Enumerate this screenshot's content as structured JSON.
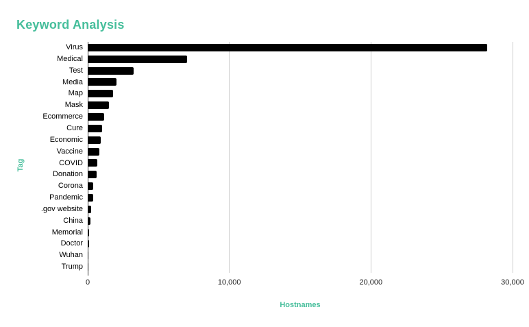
{
  "page": {
    "background": "#ffffff"
  },
  "chart_data": {
    "type": "bar",
    "orientation": "horizontal",
    "title": "Keyword Analysis",
    "xlabel": "Hostnames",
    "ylabel": "Tag",
    "categories": [
      "Virus",
      "Medical",
      "Test",
      "Media",
      "Map",
      "Mask",
      "Ecommerce",
      "Cure",
      "Economic",
      "Vaccine",
      "COVID",
      "Donation",
      "Corona",
      "Pandemic",
      ".gov website",
      "China",
      "Memorial",
      "Doctor",
      "Wuhan",
      "Trump"
    ],
    "values": [
      28200,
      7000,
      3250,
      2050,
      1800,
      1520,
      1160,
      1040,
      920,
      820,
      700,
      610,
      400,
      370,
      235,
      210,
      120,
      100,
      70,
      15
    ],
    "xlim": [
      0,
      30000
    ],
    "xticks": [
      0,
      10000,
      20000,
      30000
    ],
    "xtick_labels": [
      "0",
      "10,000",
      "20,000",
      "30,000"
    ],
    "grid": true,
    "legend": "none",
    "colors": {
      "bar": "#000000",
      "title": "#46be9b",
      "axis_titles": "#46be9b",
      "tick_labels": "#1a1a1a",
      "category_labels": "#000000",
      "gridline": "#cccccc",
      "axis_line": "#333333"
    }
  }
}
